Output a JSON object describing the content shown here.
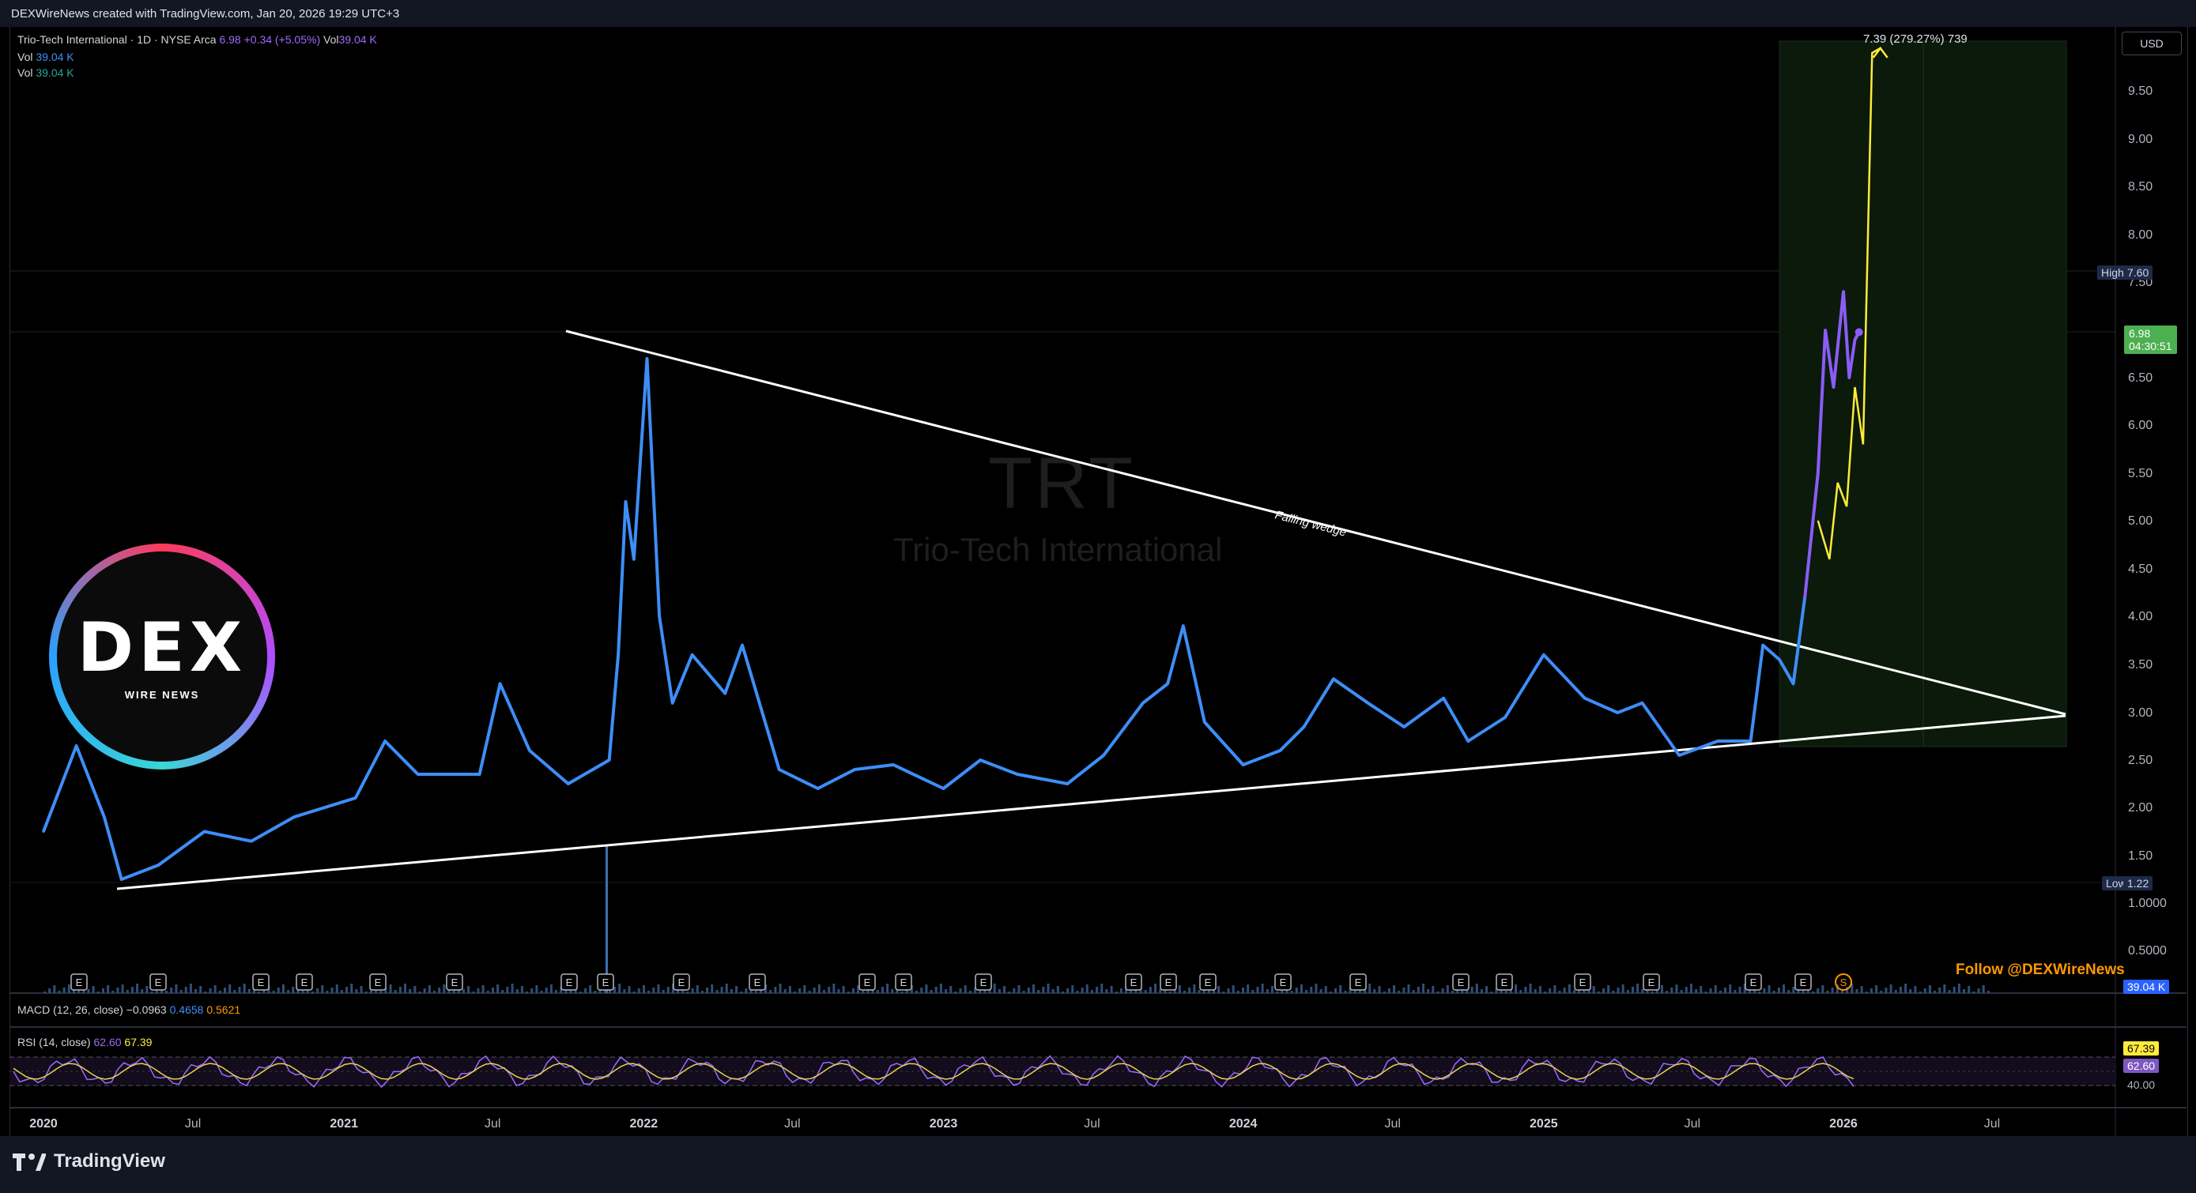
{
  "header": {
    "text": "DEXWireNews created with TradingView.com, Jan 20, 2026 19:29 UTC+3"
  },
  "legend": {
    "main_label": "Trio-Tech International · 1D · NYSE Arca",
    "price": "6.98",
    "change": "+0.34 (+5.05%)",
    "vol_label": "Vol",
    "vol_value": "39.04 K",
    "vol1_label": "Vol",
    "vol1_value": "39.04 K",
    "vol2_label": "Vol",
    "vol2_value": "39.04 K",
    "macd_label": "MACD (12, 26, close)",
    "macd_v1": "−0.0963",
    "macd_v2": "0.4658",
    "macd_v3": "0.5621",
    "rsi_label": "RSI (14, close)",
    "rsi_v1": "62.60",
    "rsi_v2": "67.39"
  },
  "currency_button": "USD",
  "watermark": {
    "ticker": "TRT",
    "name": "Trio-Tech International"
  },
  "logo": {
    "big": "DEX",
    "small": "WIRE NEWS"
  },
  "follow_text": "Follow @DEXWireNews",
  "footer_brand": "TradingView",
  "tags": {
    "high_label": "High",
    "high_value": "7.60",
    "low_label": "Low",
    "low_value": "1.22",
    "price_value": "6.98",
    "countdown": "04:30:51",
    "vol_tag": "39.04 K",
    "rsi_tag1": "67.39",
    "rsi_tag2": "62.60",
    "rsi_axis": "40.00"
  },
  "colors": {
    "price_line": "#3d8ef7",
    "price_line_recent": "#8b5cf6",
    "projection": "#ffeb3b",
    "trendline": "#ffffff",
    "target_box": "#0d1a0d",
    "high_tag": "#1e2a4a",
    "price_tag": "#4caf50",
    "earnings_badge": "#000000"
  },
  "chart_data": {
    "type": "line",
    "title": "Trio-Tech International · 1D · NYSE Arca",
    "scale": "log",
    "y_ticks": [
      "9.50",
      "9.00",
      "8.50",
      "8.00",
      "7.50",
      "7.00",
      "6.50",
      "6.00",
      "5.50",
      "5.00",
      "4.50",
      "4.00",
      "3.50",
      "3.00",
      "2.50",
      "2.00",
      "1.50",
      "1.0000",
      "0.5000"
    ],
    "x_ticks": [
      "2020",
      "Jul",
      "2021",
      "Jul",
      "2022",
      "Jul",
      "2023",
      "Jul",
      "2024",
      "Jul",
      "2025",
      "Jul",
      "2026",
      "Jul"
    ],
    "ylim": [
      0.4,
      10.0
    ],
    "series": [
      {
        "name": "Trio-Tech International",
        "x": [
          "2020-01-01",
          "2020-02-10",
          "2020-03-15",
          "2020-04-05",
          "2020-05-20",
          "2020-07-15",
          "2020-09-10",
          "2020-11-01",
          "2021-01-15",
          "2021-02-20",
          "2021-04-01",
          "2021-06-15",
          "2021-07-10",
          "2021-08-15",
          "2021-10-01",
          "2021-11-20",
          "2021-12-01",
          "2021-12-10",
          "2021-12-20",
          "2022-01-05",
          "2022-01-10",
          "2022-01-20",
          "2022-02-05",
          "2022-03-01",
          "2022-04-10",
          "2022-05-01",
          "2022-06-15",
          "2022-08-01",
          "2022-09-15",
          "2022-11-01",
          "2023-01-01",
          "2023-02-15",
          "2023-04-01",
          "2023-06-01",
          "2023-07-15",
          "2023-09-01",
          "2023-10-01",
          "2023-10-20",
          "2023-11-15",
          "2024-01-01",
          "2024-02-15",
          "2024-03-15",
          "2024-04-20",
          "2024-06-01",
          "2024-07-15",
          "2024-09-01",
          "2024-10-01",
          "2024-11-15",
          "2025-01-01",
          "2025-02-20",
          "2025-04-01",
          "2025-05-01",
          "2025-06-15",
          "2025-08-01",
          "2025-09-10",
          "2025-09-25",
          "2025-10-15",
          "2025-11-01",
          "2025-11-15",
          "2025-12-01",
          "2025-12-10",
          "2025-12-20",
          "2026-01-01",
          "2026-01-08",
          "2026-01-15",
          "2026-01-20"
        ],
        "y": [
          1.75,
          2.65,
          1.9,
          1.25,
          1.4,
          1.75,
          1.65,
          1.9,
          2.1,
          2.7,
          2.35,
          2.35,
          3.3,
          2.6,
          2.25,
          2.5,
          3.6,
          5.2,
          4.6,
          6.7,
          5.8,
          4.0,
          3.1,
          3.6,
          3.2,
          3.7,
          2.4,
          2.2,
          2.4,
          2.45,
          2.2,
          2.5,
          2.35,
          2.25,
          2.55,
          3.1,
          3.3,
          3.9,
          2.9,
          2.45,
          2.6,
          2.85,
          3.35,
          3.1,
          2.85,
          3.15,
          2.7,
          2.95,
          3.6,
          3.15,
          3.0,
          3.1,
          2.55,
          2.7,
          2.7,
          3.7,
          3.55,
          3.3,
          4.2,
          5.5,
          7.0,
          6.4,
          7.4,
          6.5,
          6.9,
          6.98
        ]
      },
      {
        "name": "Projection",
        "x": [
          "2025-12-01",
          "2025-12-15",
          "2025-12-25",
          "2026-01-05",
          "2026-01-15",
          "2026-01-25",
          "2026-02-05",
          "2026-02-15"
        ],
        "y": [
          5.0,
          4.6,
          5.4,
          5.15,
          6.4,
          5.8,
          9.9,
          9.95
        ]
      }
    ],
    "annotations": [
      "Falling wedge",
      "7.39 (279.27%) 739"
    ],
    "earnings_marker": "E",
    "dividend_marker": "S"
  }
}
